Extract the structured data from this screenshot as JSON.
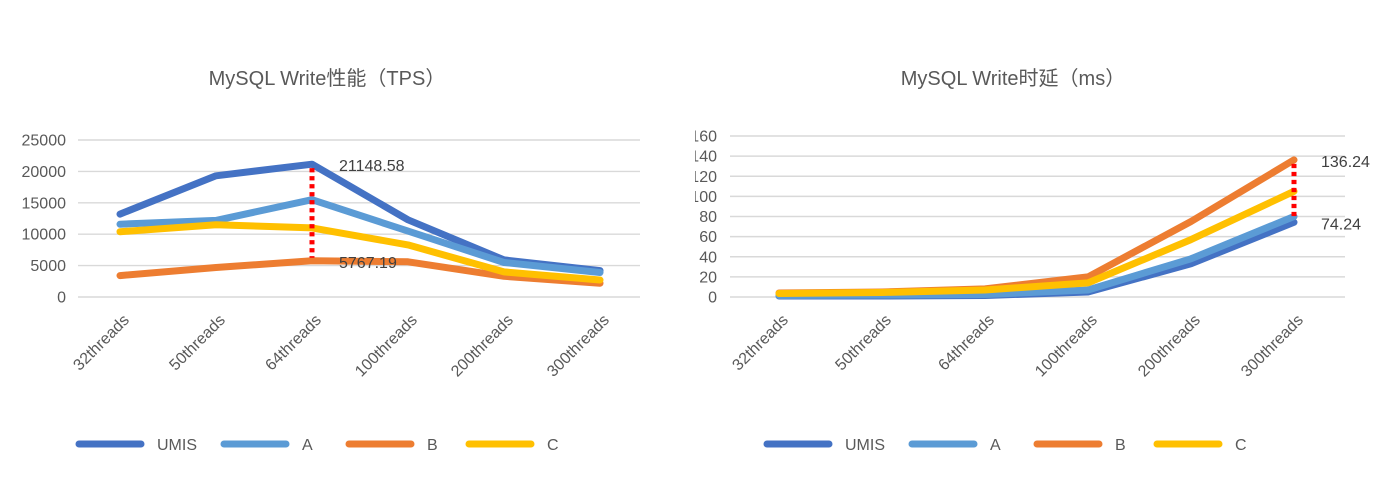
{
  "page": {
    "background_color": "#ffffff"
  },
  "colors": {
    "grid": "#D9D9D9",
    "axis_text": "#595959",
    "annotation_text": "#404040",
    "marker_line": "#FF0000",
    "series_umis": "#4472C4",
    "series_a": "#5B9BD5",
    "series_b": "#ED7D31",
    "series_c": "#FFC000"
  },
  "chart_data": [
    {
      "type": "line",
      "title": "MySQL Write性能（TPS）",
      "xlabel": "",
      "ylabel": "",
      "categories": [
        "32threads",
        "50threads",
        "64threads",
        "100threads",
        "200threads",
        "300threads"
      ],
      "series": [
        {
          "name": "UMIS",
          "color": "#4472C4",
          "values": [
            13200,
            19300,
            21148.58,
            12300,
            5900,
            4200
          ]
        },
        {
          "name": "A",
          "color": "#5B9BD5",
          "values": [
            11600,
            12200,
            15500,
            10500,
            5500,
            3900
          ]
        },
        {
          "name": "B",
          "color": "#ED7D31",
          "values": [
            3400,
            4700,
            5767.19,
            5600,
            3300,
            2200
          ]
        },
        {
          "name": "C",
          "color": "#FFC000",
          "values": [
            10400,
            11500,
            11000,
            8300,
            4000,
            2700
          ]
        }
      ],
      "ylim": [
        0,
        25000
      ],
      "ytick_step": 5000,
      "grid": true,
      "legend_position": "bottom",
      "annotations": [
        {
          "text": "21148.58",
          "series": "UMIS",
          "category": "64threads"
        },
        {
          "text": "5767.19",
          "series": "B",
          "category": "64threads"
        }
      ],
      "marker_line": {
        "category": "64threads",
        "from_series": "UMIS",
        "to_series": "B",
        "color": "#FF0000",
        "style": "dotted"
      }
    },
    {
      "type": "line",
      "title": "MySQL Write时延（ms）",
      "xlabel": "",
      "ylabel": "",
      "categories": [
        "32threads",
        "50threads",
        "64threads",
        "100threads",
        "200threads",
        "300threads"
      ],
      "series": [
        {
          "name": "UMIS",
          "color": "#4472C4",
          "values": [
            1,
            1,
            1.5,
            5,
            33,
            74.24
          ]
        },
        {
          "name": "A",
          "color": "#5B9BD5",
          "values": [
            1.5,
            2,
            2.5,
            7,
            38,
            80
          ]
        },
        {
          "name": "B",
          "color": "#ED7D31",
          "values": [
            4,
            5,
            8,
            20,
            75,
            136.24
          ]
        },
        {
          "name": "C",
          "color": "#FFC000",
          "values": [
            3.5,
            4.5,
            7,
            14,
            57,
            105
          ]
        }
      ],
      "ylim": [
        0,
        160
      ],
      "ytick_step": 20,
      "grid": true,
      "legend_position": "bottom",
      "annotations": [
        {
          "text": "136.24",
          "series": "B",
          "category": "300threads"
        },
        {
          "text": "74.24",
          "series": "UMIS",
          "category": "300threads"
        }
      ],
      "marker_line": {
        "category": "300threads",
        "from_series": "B",
        "to_series": "UMIS",
        "color": "#FF0000",
        "style": "dotted"
      }
    }
  ]
}
